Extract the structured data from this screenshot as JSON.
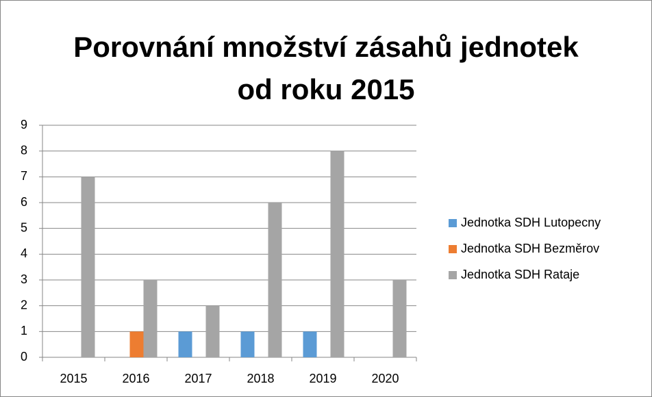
{
  "chart_data": {
    "type": "bar",
    "title": "Porovnání množství zásahů jednotek od roku 2015",
    "categories": [
      "2015",
      "2016",
      "2017",
      "2018",
      "2019",
      "2020"
    ],
    "series": [
      {
        "name": "Jednotka SDH Lutopecny",
        "color": "#5b9bd5",
        "values": [
          0,
          0,
          1,
          1,
          1,
          0
        ]
      },
      {
        "name": "Jednotka SDH Bezměrov",
        "color": "#ed7d31",
        "values": [
          0,
          1,
          0,
          0,
          0,
          0
        ]
      },
      {
        "name": "Jednotka SDH Rataje",
        "color": "#a5a5a5",
        "values": [
          7,
          3,
          2,
          6,
          8,
          3
        ]
      }
    ],
    "ylim": [
      0,
      9
    ],
    "yticks": [
      0,
      1,
      2,
      3,
      4,
      5,
      6,
      7,
      8,
      9
    ],
    "grid": true,
    "legend": "right"
  }
}
